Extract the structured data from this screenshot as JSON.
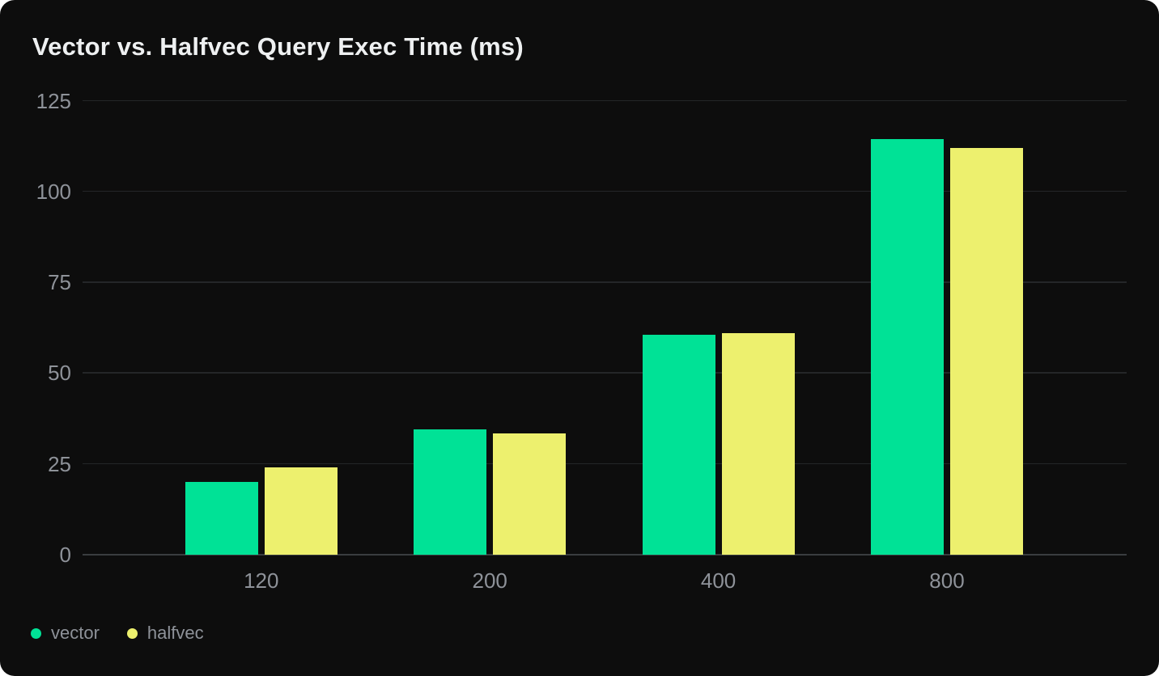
{
  "card": {
    "background": "#0d0d0d",
    "title": "Vector vs. Halfvec Query Exec Time (ms)"
  },
  "chart_data": {
    "type": "bar",
    "title": "Vector vs. Halfvec Query Exec Time (ms)",
    "xlabel": "",
    "ylabel": "",
    "categories": [
      "120",
      "200",
      "400",
      "800"
    ],
    "series": [
      {
        "name": "vector",
        "color": "#00e296",
        "values": [
          20,
          34.5,
          60.5,
          114.5
        ]
      },
      {
        "name": "halfvec",
        "color": "#edf06e",
        "values": [
          24,
          33.5,
          61,
          112
        ]
      }
    ],
    "y_ticks": [
      0,
      25,
      50,
      75,
      100,
      125
    ],
    "ylim": [
      0,
      125
    ],
    "grid": true,
    "legend_position": "bottom-left",
    "colors": {
      "grid_line": "#242628",
      "zero_line": "#3a3d3f",
      "tick_label": "#8e9299",
      "title_text": "#eef0f1",
      "card_background": "#0d0d0d",
      "page_background": "#ffffff"
    }
  },
  "legend": {
    "items": [
      {
        "label": "vector",
        "color": "#00e296"
      },
      {
        "label": "halfvec",
        "color": "#edf06e"
      }
    ]
  }
}
